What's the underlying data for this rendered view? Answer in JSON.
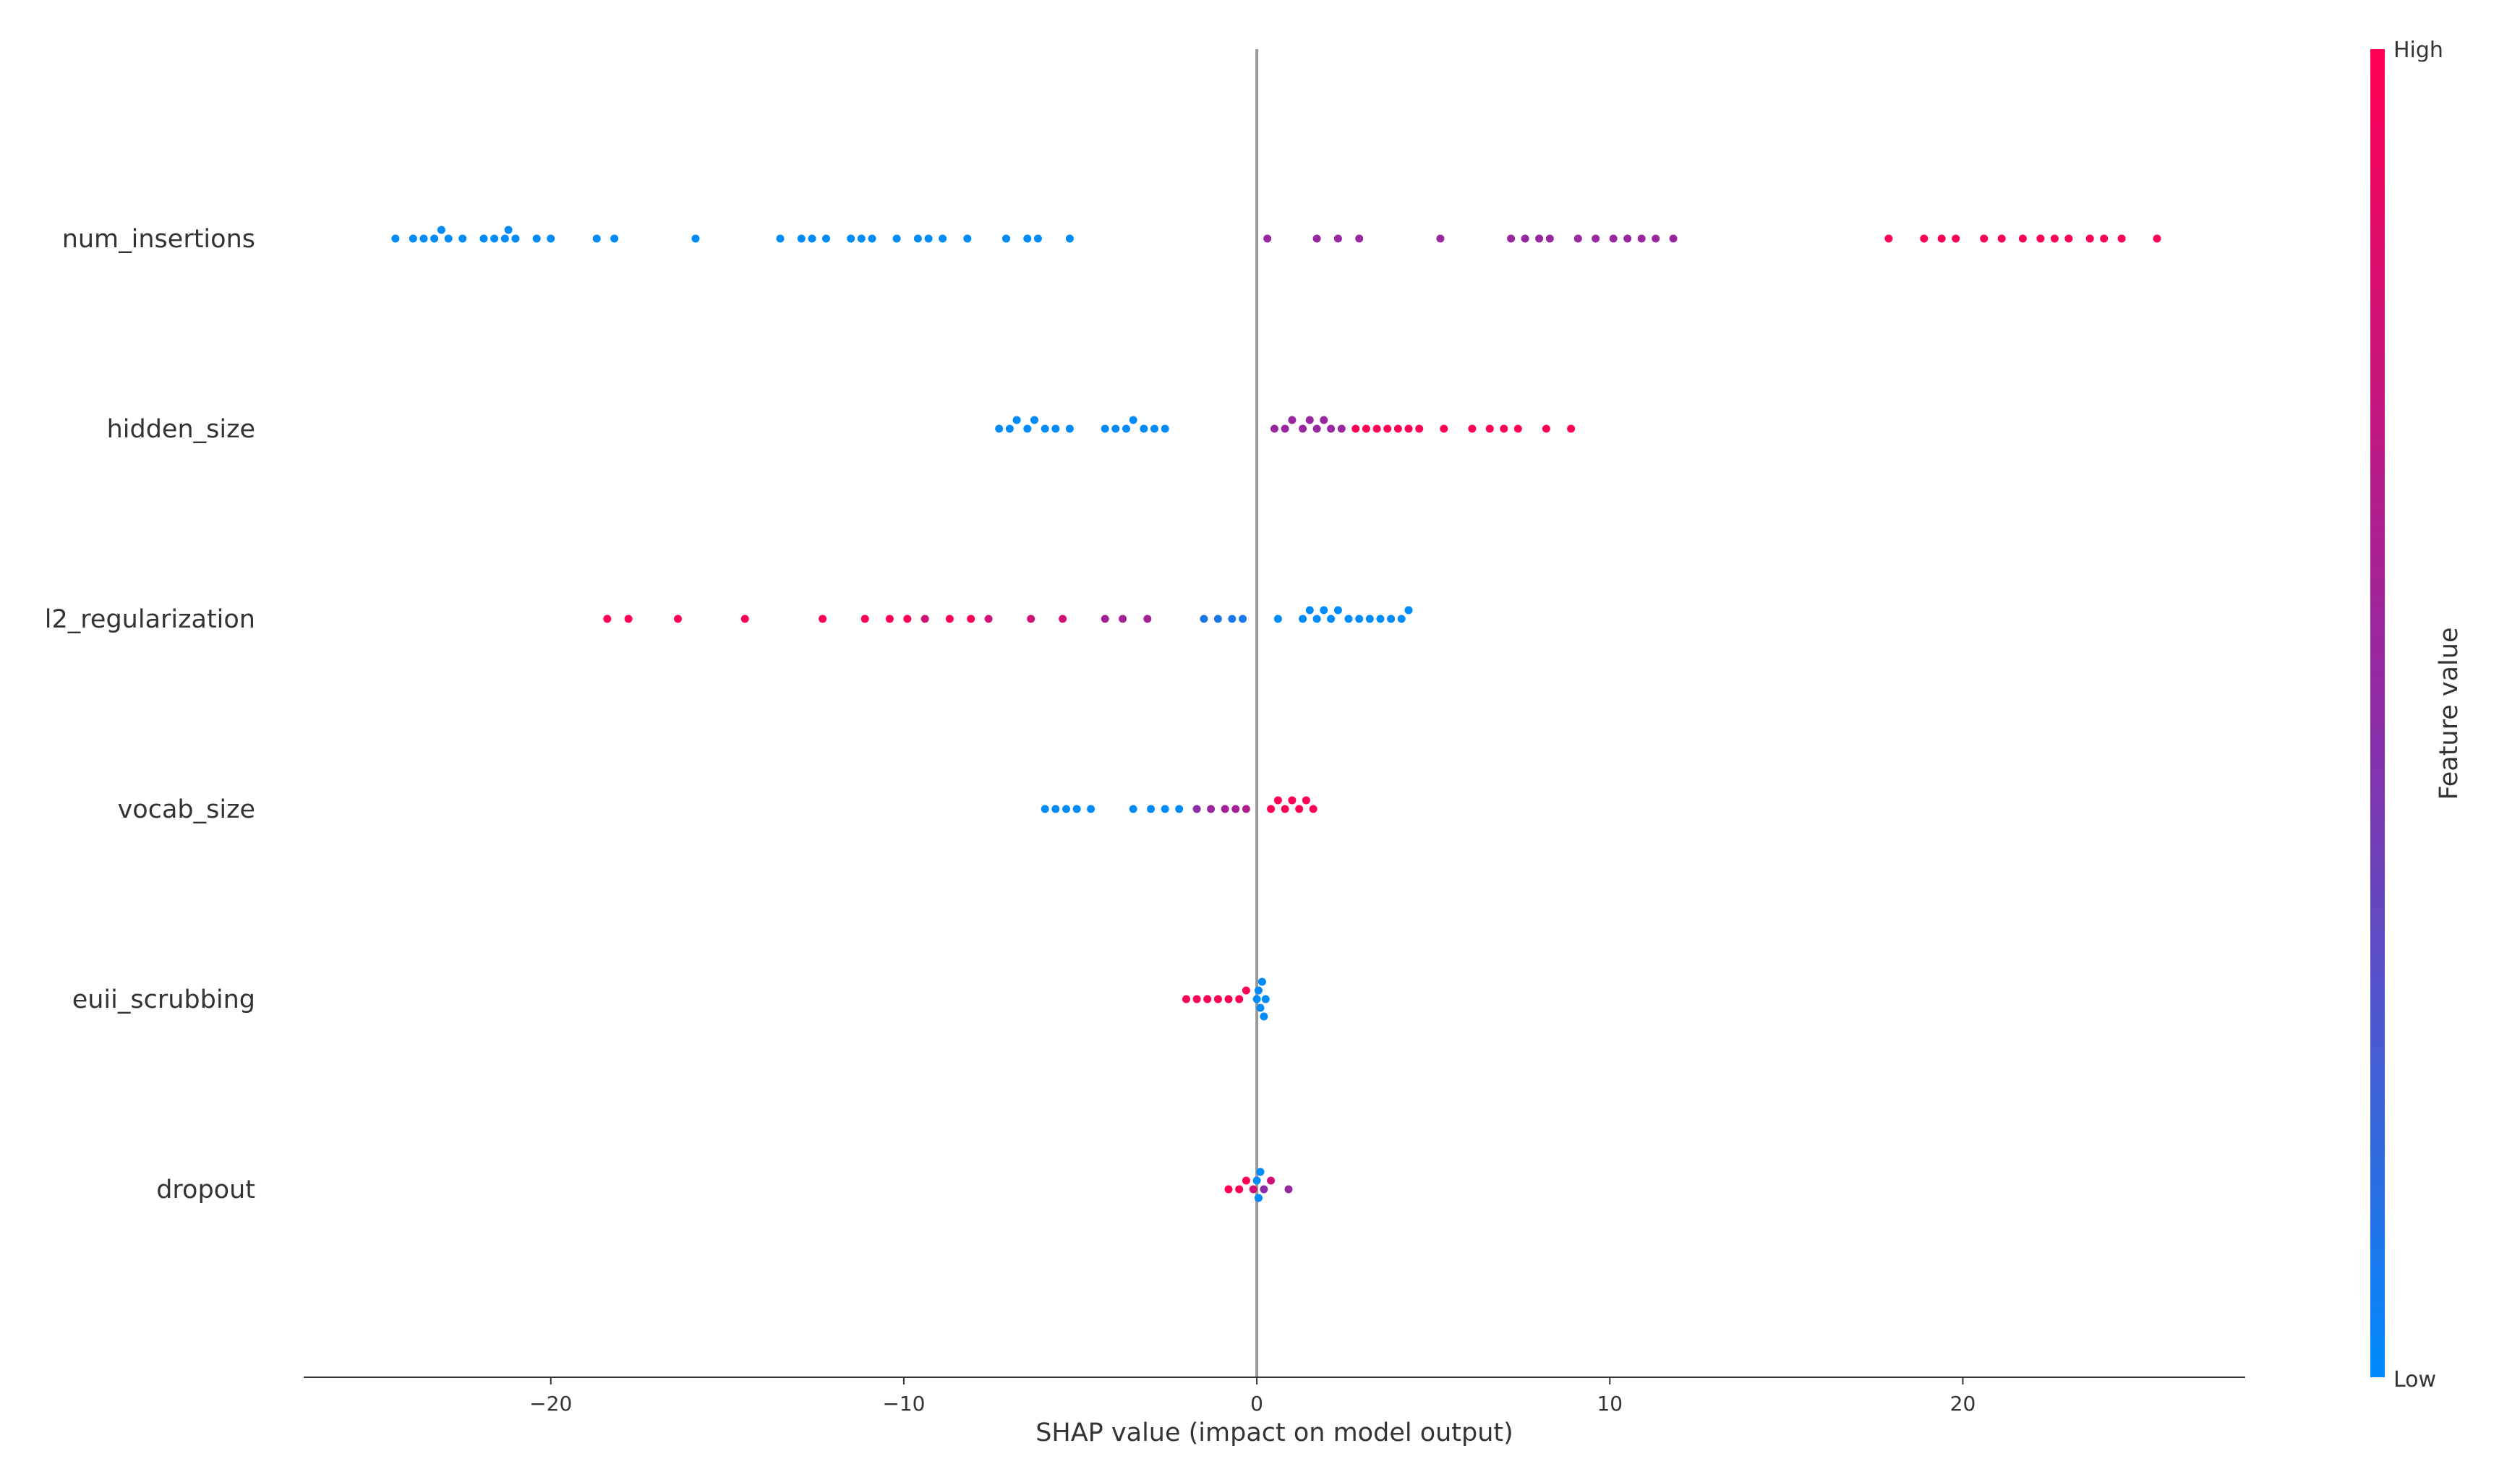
{
  "chart_data": {
    "type": "scatter",
    "subtype": "shap-beeswarm",
    "title": "",
    "xlabel": "SHAP value (impact on model output)",
    "ylabel": "",
    "xlim": [
      -27,
      28
    ],
    "xticks": [
      -20,
      -10,
      0,
      10,
      20
    ],
    "grid": false,
    "zero_line": true,
    "colorbar": {
      "label": "Feature value",
      "high_label": "High",
      "low_label": "Low",
      "high_color": "#ff0052",
      "mid_color": "#8e2ba7",
      "low_color": "#008bfb"
    },
    "features": [
      {
        "name": "num_insertions",
        "points": [
          {
            "x": -24.4,
            "c": 0
          },
          {
            "x": -23.9,
            "c": 0
          },
          {
            "x": -23.6,
            "c": 0
          },
          {
            "x": -23.3,
            "c": 0
          },
          {
            "x": -23.1,
            "c": 0
          },
          {
            "x": -22.9,
            "c": 0
          },
          {
            "x": -22.5,
            "c": 0
          },
          {
            "x": -21.9,
            "c": 0
          },
          {
            "x": -21.6,
            "c": 0
          },
          {
            "x": -21.3,
            "c": 0
          },
          {
            "x": -21.2,
            "c": 0
          },
          {
            "x": -21.0,
            "c": 0
          },
          {
            "x": -20.4,
            "c": 0
          },
          {
            "x": -20.0,
            "c": 0
          },
          {
            "x": -18.7,
            "c": 0
          },
          {
            "x": -18.2,
            "c": 0
          },
          {
            "x": -15.9,
            "c": 0
          },
          {
            "x": -13.5,
            "c": 0
          },
          {
            "x": -12.9,
            "c": 0
          },
          {
            "x": -12.6,
            "c": 0
          },
          {
            "x": -12.2,
            "c": 0
          },
          {
            "x": -11.5,
            "c": 0
          },
          {
            "x": -11.2,
            "c": 0
          },
          {
            "x": -10.9,
            "c": 0
          },
          {
            "x": -10.2,
            "c": 0
          },
          {
            "x": -9.6,
            "c": 0
          },
          {
            "x": -9.3,
            "c": 0
          },
          {
            "x": -8.9,
            "c": 0
          },
          {
            "x": -8.2,
            "c": 0
          },
          {
            "x": -7.1,
            "c": 0
          },
          {
            "x": -6.5,
            "c": 0
          },
          {
            "x": -6.2,
            "c": 0
          },
          {
            "x": -5.3,
            "c": 0
          },
          {
            "x": 0.3,
            "c": 0.55
          },
          {
            "x": 1.7,
            "c": 0.55
          },
          {
            "x": 2.3,
            "c": 0.55
          },
          {
            "x": 2.9,
            "c": 0.55
          },
          {
            "x": 5.2,
            "c": 0.55
          },
          {
            "x": 7.2,
            "c": 0.55
          },
          {
            "x": 7.6,
            "c": 0.55
          },
          {
            "x": 8.0,
            "c": 0.55
          },
          {
            "x": 8.3,
            "c": 0.55
          },
          {
            "x": 9.1,
            "c": 0.55
          },
          {
            "x": 9.6,
            "c": 0.55
          },
          {
            "x": 10.1,
            "c": 0.55
          },
          {
            "x": 10.5,
            "c": 0.55
          },
          {
            "x": 10.9,
            "c": 0.55
          },
          {
            "x": 11.3,
            "c": 0.55
          },
          {
            "x": 11.8,
            "c": 0.55
          },
          {
            "x": 17.9,
            "c": 1
          },
          {
            "x": 18.9,
            "c": 1
          },
          {
            "x": 19.4,
            "c": 1
          },
          {
            "x": 19.8,
            "c": 1
          },
          {
            "x": 20.6,
            "c": 1
          },
          {
            "x": 21.1,
            "c": 1
          },
          {
            "x": 21.7,
            "c": 1
          },
          {
            "x": 22.2,
            "c": 1
          },
          {
            "x": 22.6,
            "c": 1
          },
          {
            "x": 23.0,
            "c": 1
          },
          {
            "x": 23.6,
            "c": 1
          },
          {
            "x": 24.0,
            "c": 1
          },
          {
            "x": 24.5,
            "c": 1
          },
          {
            "x": 25.5,
            "c": 1
          }
        ]
      },
      {
        "name": "hidden_size",
        "points": [
          {
            "x": -7.3,
            "c": 0
          },
          {
            "x": -7.0,
            "c": 0
          },
          {
            "x": -6.8,
            "c": 0
          },
          {
            "x": -6.5,
            "c": 0
          },
          {
            "x": -6.3,
            "c": 0
          },
          {
            "x": -6.0,
            "c": 0
          },
          {
            "x": -5.7,
            "c": 0
          },
          {
            "x": -5.3,
            "c": 0
          },
          {
            "x": -4.3,
            "c": 0
          },
          {
            "x": -4.0,
            "c": 0
          },
          {
            "x": -3.7,
            "c": 0
          },
          {
            "x": -3.5,
            "c": 0
          },
          {
            "x": -3.2,
            "c": 0
          },
          {
            "x": -2.9,
            "c": 0
          },
          {
            "x": -2.6,
            "c": 0
          },
          {
            "x": 0.5,
            "c": 0.55
          },
          {
            "x": 0.8,
            "c": 0.55
          },
          {
            "x": 1.0,
            "c": 0.55
          },
          {
            "x": 1.3,
            "c": 0.55
          },
          {
            "x": 1.5,
            "c": 0.55
          },
          {
            "x": 1.7,
            "c": 0.55
          },
          {
            "x": 1.9,
            "c": 0.55
          },
          {
            "x": 2.1,
            "c": 0.55
          },
          {
            "x": 2.4,
            "c": 0.55
          },
          {
            "x": 2.8,
            "c": 1
          },
          {
            "x": 3.1,
            "c": 1
          },
          {
            "x": 3.4,
            "c": 1
          },
          {
            "x": 3.7,
            "c": 1
          },
          {
            "x": 4.0,
            "c": 1
          },
          {
            "x": 4.3,
            "c": 1
          },
          {
            "x": 4.6,
            "c": 1
          },
          {
            "x": 5.3,
            "c": 1
          },
          {
            "x": 6.1,
            "c": 1
          },
          {
            "x": 6.6,
            "c": 1
          },
          {
            "x": 7.0,
            "c": 1
          },
          {
            "x": 7.4,
            "c": 1
          },
          {
            "x": 8.2,
            "c": 1
          },
          {
            "x": 8.9,
            "c": 1
          }
        ]
      },
      {
        "name": "l2_regularization",
        "points": [
          {
            "x": -18.4,
            "c": 1
          },
          {
            "x": -17.8,
            "c": 1
          },
          {
            "x": -16.4,
            "c": 1
          },
          {
            "x": -14.5,
            "c": 1
          },
          {
            "x": -12.3,
            "c": 1
          },
          {
            "x": -11.1,
            "c": 1
          },
          {
            "x": -10.4,
            "c": 1
          },
          {
            "x": -9.9,
            "c": 1
          },
          {
            "x": -9.4,
            "c": 0.8
          },
          {
            "x": -8.7,
            "c": 1
          },
          {
            "x": -8.1,
            "c": 1
          },
          {
            "x": -7.6,
            "c": 0.8
          },
          {
            "x": -6.4,
            "c": 0.8
          },
          {
            "x": -5.5,
            "c": 0.8
          },
          {
            "x": -4.3,
            "c": 0.6
          },
          {
            "x": -3.8,
            "c": 0.6
          },
          {
            "x": -3.1,
            "c": 0.6
          },
          {
            "x": -1.5,
            "c": 0.1
          },
          {
            "x": -1.1,
            "c": 0.1
          },
          {
            "x": -0.7,
            "c": 0.1
          },
          {
            "x": -0.4,
            "c": 0.1
          },
          {
            "x": 0.6,
            "c": 0
          },
          {
            "x": 1.3,
            "c": 0
          },
          {
            "x": 1.5,
            "c": 0
          },
          {
            "x": 1.7,
            "c": 0
          },
          {
            "x": 1.9,
            "c": 0
          },
          {
            "x": 2.1,
            "c": 0
          },
          {
            "x": 2.3,
            "c": 0
          },
          {
            "x": 2.6,
            "c": 0
          },
          {
            "x": 2.9,
            "c": 0
          },
          {
            "x": 3.2,
            "c": 0
          },
          {
            "x": 3.5,
            "c": 0
          },
          {
            "x": 3.8,
            "c": 0
          },
          {
            "x": 4.1,
            "c": 0
          },
          {
            "x": 4.3,
            "c": 0
          }
        ]
      },
      {
        "name": "vocab_size",
        "points": [
          {
            "x": -6.0,
            "c": 0
          },
          {
            "x": -5.7,
            "c": 0
          },
          {
            "x": -5.4,
            "c": 0
          },
          {
            "x": -5.1,
            "c": 0
          },
          {
            "x": -4.7,
            "c": 0
          },
          {
            "x": -3.5,
            "c": 0
          },
          {
            "x": -3.0,
            "c": 0
          },
          {
            "x": -2.6,
            "c": 0
          },
          {
            "x": -2.2,
            "c": 0
          },
          {
            "x": -1.7,
            "c": 0.5
          },
          {
            "x": -1.3,
            "c": 0.55
          },
          {
            "x": -0.9,
            "c": 0.6
          },
          {
            "x": -0.6,
            "c": 0.6
          },
          {
            "x": -0.3,
            "c": 0.65
          },
          {
            "x": 0.4,
            "c": 1
          },
          {
            "x": 0.6,
            "c": 1
          },
          {
            "x": 0.8,
            "c": 1
          },
          {
            "x": 1.0,
            "c": 1
          },
          {
            "x": 1.2,
            "c": 1
          },
          {
            "x": 1.4,
            "c": 1
          },
          {
            "x": 1.6,
            "c": 1
          }
        ]
      },
      {
        "name": "euii_scrubbing",
        "points": [
          {
            "x": -2.0,
            "c": 1
          },
          {
            "x": -1.7,
            "c": 1
          },
          {
            "x": -1.4,
            "c": 1
          },
          {
            "x": -1.1,
            "c": 1
          },
          {
            "x": -0.8,
            "c": 1
          },
          {
            "x": -0.5,
            "c": 1
          },
          {
            "x": -0.3,
            "c": 1
          },
          {
            "x": 0.0,
            "c": 0
          },
          {
            "x": 0.05,
            "c": 0
          },
          {
            "x": 0.1,
            "c": 0
          },
          {
            "x": 0.15,
            "c": 0
          },
          {
            "x": 0.2,
            "c": 0
          },
          {
            "x": 0.25,
            "c": 0
          }
        ]
      },
      {
        "name": "dropout",
        "points": [
          {
            "x": -0.8,
            "c": 1
          },
          {
            "x": -0.5,
            "c": 1
          },
          {
            "x": -0.3,
            "c": 1
          },
          {
            "x": -0.1,
            "c": 0.8
          },
          {
            "x": 0.0,
            "c": 0
          },
          {
            "x": 0.05,
            "c": 0
          },
          {
            "x": 0.1,
            "c": 0
          },
          {
            "x": 0.2,
            "c": 0.5
          },
          {
            "x": 0.4,
            "c": 0.8
          },
          {
            "x": 0.9,
            "c": 0.55
          }
        ]
      }
    ]
  }
}
